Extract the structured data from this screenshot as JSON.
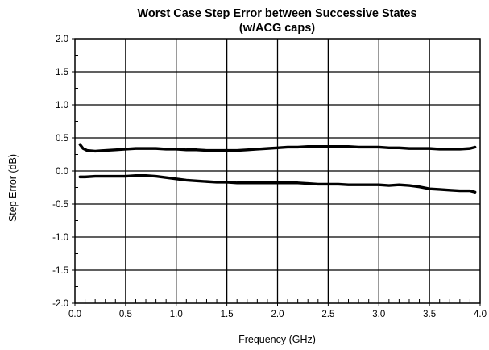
{
  "chart_data": {
    "type": "line",
    "title": "Worst Case Step Error between Successive States",
    "subtitle": "(w/ACG caps)",
    "xlabel": "Frequency (GHz)",
    "ylabel": "Step Error (dB)",
    "xlim": [
      0.0,
      4.0
    ],
    "ylim": [
      -2.0,
      2.0
    ],
    "x_ticks": [
      0.0,
      0.5,
      1.0,
      1.5,
      2.0,
      2.5,
      3.0,
      3.5,
      4.0
    ],
    "y_ticks": [
      -2.0,
      -1.5,
      -1.0,
      -0.5,
      0.0,
      0.5,
      1.0,
      1.5,
      2.0
    ],
    "x_tick_labels": [
      "0.0",
      "0.5",
      "1.0",
      "1.5",
      "2.0",
      "2.5",
      "3.0",
      "3.5",
      "4.0"
    ],
    "y_tick_labels": [
      "-2.0",
      "-1.5",
      "-1.0",
      "-0.5",
      "0.0",
      "0.5",
      "1.0",
      "1.5",
      "2.0"
    ],
    "grid": true,
    "line_color": "#000000",
    "series": [
      {
        "x": [
          0.05,
          0.08,
          0.12,
          0.2,
          0.3,
          0.4,
          0.5,
          0.6,
          0.7,
          0.8,
          0.9,
          1.0,
          1.1,
          1.2,
          1.3,
          1.4,
          1.5,
          1.6,
          1.7,
          1.8,
          1.9,
          2.0,
          2.1,
          2.2,
          2.3,
          2.4,
          2.5,
          2.6,
          2.7,
          2.8,
          2.9,
          3.0,
          3.1,
          3.2,
          3.3,
          3.4,
          3.5,
          3.6,
          3.7,
          3.8,
          3.9,
          3.95
        ],
        "values": [
          0.4,
          0.34,
          0.31,
          0.3,
          0.31,
          0.32,
          0.33,
          0.34,
          0.34,
          0.34,
          0.33,
          0.33,
          0.32,
          0.32,
          0.31,
          0.31,
          0.31,
          0.31,
          0.32,
          0.33,
          0.34,
          0.35,
          0.36,
          0.36,
          0.37,
          0.37,
          0.37,
          0.37,
          0.37,
          0.36,
          0.36,
          0.36,
          0.35,
          0.35,
          0.34,
          0.34,
          0.34,
          0.33,
          0.33,
          0.33,
          0.34,
          0.36
        ]
      },
      {
        "x": [
          0.05,
          0.1,
          0.2,
          0.3,
          0.4,
          0.5,
          0.6,
          0.7,
          0.8,
          0.9,
          1.0,
          1.1,
          1.2,
          1.3,
          1.4,
          1.5,
          1.6,
          1.7,
          1.8,
          1.9,
          2.0,
          2.1,
          2.2,
          2.3,
          2.4,
          2.5,
          2.6,
          2.7,
          2.8,
          2.9,
          3.0,
          3.1,
          3.2,
          3.3,
          3.4,
          3.5,
          3.6,
          3.7,
          3.8,
          3.9,
          3.95
        ],
        "values": [
          -0.09,
          -0.09,
          -0.08,
          -0.08,
          -0.08,
          -0.08,
          -0.07,
          -0.07,
          -0.08,
          -0.1,
          -0.12,
          -0.14,
          -0.15,
          -0.16,
          -0.17,
          -0.17,
          -0.18,
          -0.18,
          -0.18,
          -0.18,
          -0.18,
          -0.18,
          -0.18,
          -0.19,
          -0.2,
          -0.2,
          -0.2,
          -0.21,
          -0.21,
          -0.21,
          -0.21,
          -0.22,
          -0.21,
          -0.22,
          -0.24,
          -0.27,
          -0.28,
          -0.29,
          -0.3,
          -0.3,
          -0.32
        ]
      }
    ]
  }
}
